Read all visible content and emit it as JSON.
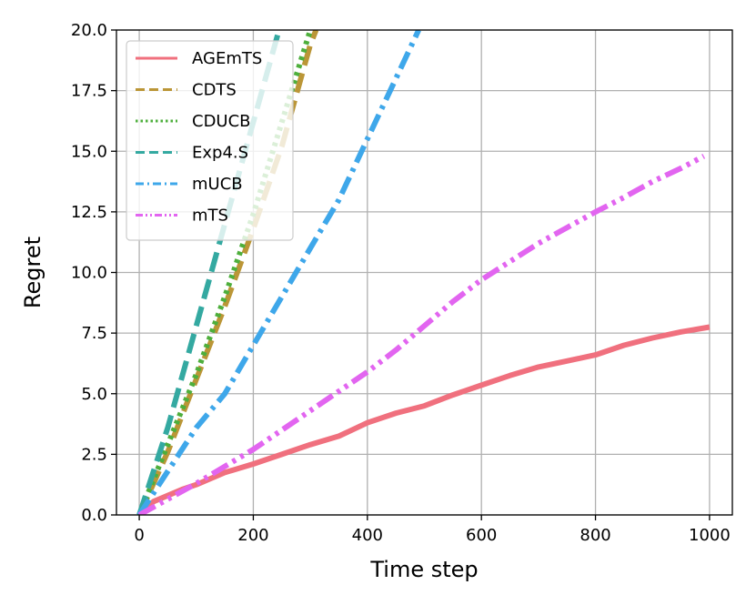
{
  "chart_data": {
    "type": "line",
    "title": "",
    "xlabel": "Time step",
    "ylabel": "Regret",
    "xlim": [
      -40,
      1040
    ],
    "ylim": [
      0,
      20
    ],
    "xticks": [
      "0",
      "200",
      "400",
      "600",
      "800",
      "1000"
    ],
    "yticks": [
      "0.0",
      "2.5",
      "5.0",
      "7.5",
      "10.0",
      "12.5",
      "15.0",
      "17.5",
      "20.0"
    ],
    "grid": true,
    "legend_position": "top-left",
    "series": [
      {
        "name": "AGEmTS",
        "color": "#f0707e",
        "dash": "solid",
        "x": [
          0,
          25,
          50,
          75,
          100,
          150,
          200,
          250,
          300,
          350,
          400,
          450,
          500,
          550,
          600,
          650,
          700,
          750,
          800,
          850,
          900,
          950,
          1000
        ],
        "y": [
          0,
          0.55,
          0.8,
          1.05,
          1.25,
          1.75,
          2.1,
          2.5,
          2.9,
          3.25,
          3.8,
          4.2,
          4.5,
          4.95,
          5.35,
          5.75,
          6.1,
          6.35,
          6.6,
          7.0,
          7.3,
          7.55,
          7.75
        ]
      },
      {
        "name": "CDTS",
        "color": "#bb9637",
        "dash": "dashed",
        "x": [
          0,
          50,
          100,
          150,
          200,
          250,
          300,
          310
        ],
        "y": [
          0,
          2.6,
          5.6,
          8.6,
          11.8,
          15.2,
          19.4,
          20
        ]
      },
      {
        "name": "CDUCB",
        "color": "#4eaf3c",
        "dash": "dotted",
        "x": [
          0,
          50,
          100,
          150,
          200,
          250,
          300
        ],
        "y": [
          0,
          2.9,
          5.8,
          9.0,
          12.4,
          16.2,
          20
        ]
      },
      {
        "name": "Exp4.S",
        "color": "#34a9a1",
        "dash": "dashed",
        "x": [
          0,
          50,
          100,
          150,
          200,
          245
        ],
        "y": [
          0,
          3.6,
          7.8,
          12.0,
          16.2,
          20
        ]
      },
      {
        "name": "mUCB",
        "color": "#3ea7ea",
        "dash": "dashdot",
        "x": [
          0,
          50,
          100,
          150,
          200,
          250,
          300,
          350,
          400,
          450,
          490
        ],
        "y": [
          0,
          1.8,
          3.6,
          5.0,
          7.0,
          9.0,
          11.0,
          13.0,
          15.5,
          18.0,
          20
        ]
      },
      {
        "name": "mTS",
        "color": "#e265f0",
        "dash": "dashdotdot",
        "x": [
          0,
          50,
          100,
          150,
          200,
          250,
          300,
          350,
          400,
          450,
          500,
          550,
          600,
          650,
          700,
          750,
          800,
          850,
          900,
          950,
          990
        ],
        "y": [
          0,
          0.65,
          1.3,
          2.0,
          2.7,
          3.5,
          4.3,
          5.1,
          5.9,
          6.8,
          7.8,
          8.8,
          9.7,
          10.45,
          11.2,
          11.85,
          12.5,
          13.1,
          13.75,
          14.3,
          14.8
        ]
      }
    ]
  }
}
